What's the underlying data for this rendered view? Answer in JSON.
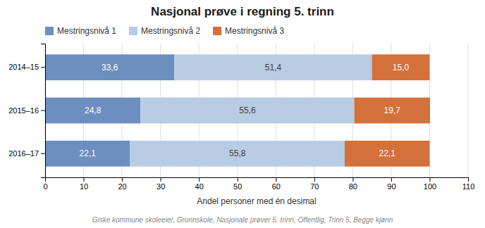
{
  "chart_data": {
    "type": "bar",
    "orientation": "horizontal",
    "stacked": true,
    "title": "Nasjonal prøve i regning 5. trinn",
    "xlabel": "Andel personer med én desimal",
    "annotations": [
      "Giske kommune skoleeier, Grunnskole, Nasjonale prøver 5. trinn, Offentlig, Trinn 5, Begge kjønn"
    ],
    "categories": [
      "2014–15",
      "2015–16",
      "2016–17"
    ],
    "series": [
      {
        "name": "Mestringsnivå 1",
        "color": "#6d8fbf",
        "values": [
          33.6,
          24.8,
          22.1
        ],
        "value_labels": [
          "33,6",
          "24,8",
          "22,1"
        ]
      },
      {
        "name": "Mestringsnivå 2",
        "color": "#b8cce4",
        "values": [
          51.4,
          55.6,
          55.8
        ],
        "value_labels": [
          "51,4",
          "55,6",
          "55,8"
        ]
      },
      {
        "name": "Mestringsnivå 3",
        "color": "#d4703a",
        "values": [
          15.0,
          19.7,
          22.1
        ],
        "value_labels": [
          "15,0",
          "19,7",
          "22,1"
        ]
      }
    ],
    "xlim": [
      0,
      110
    ],
    "xticks": [
      0,
      10,
      20,
      30,
      40,
      50,
      60,
      70,
      80,
      90,
      100,
      110
    ],
    "grid": true,
    "legend": "top-left",
    "data_labels": true
  }
}
